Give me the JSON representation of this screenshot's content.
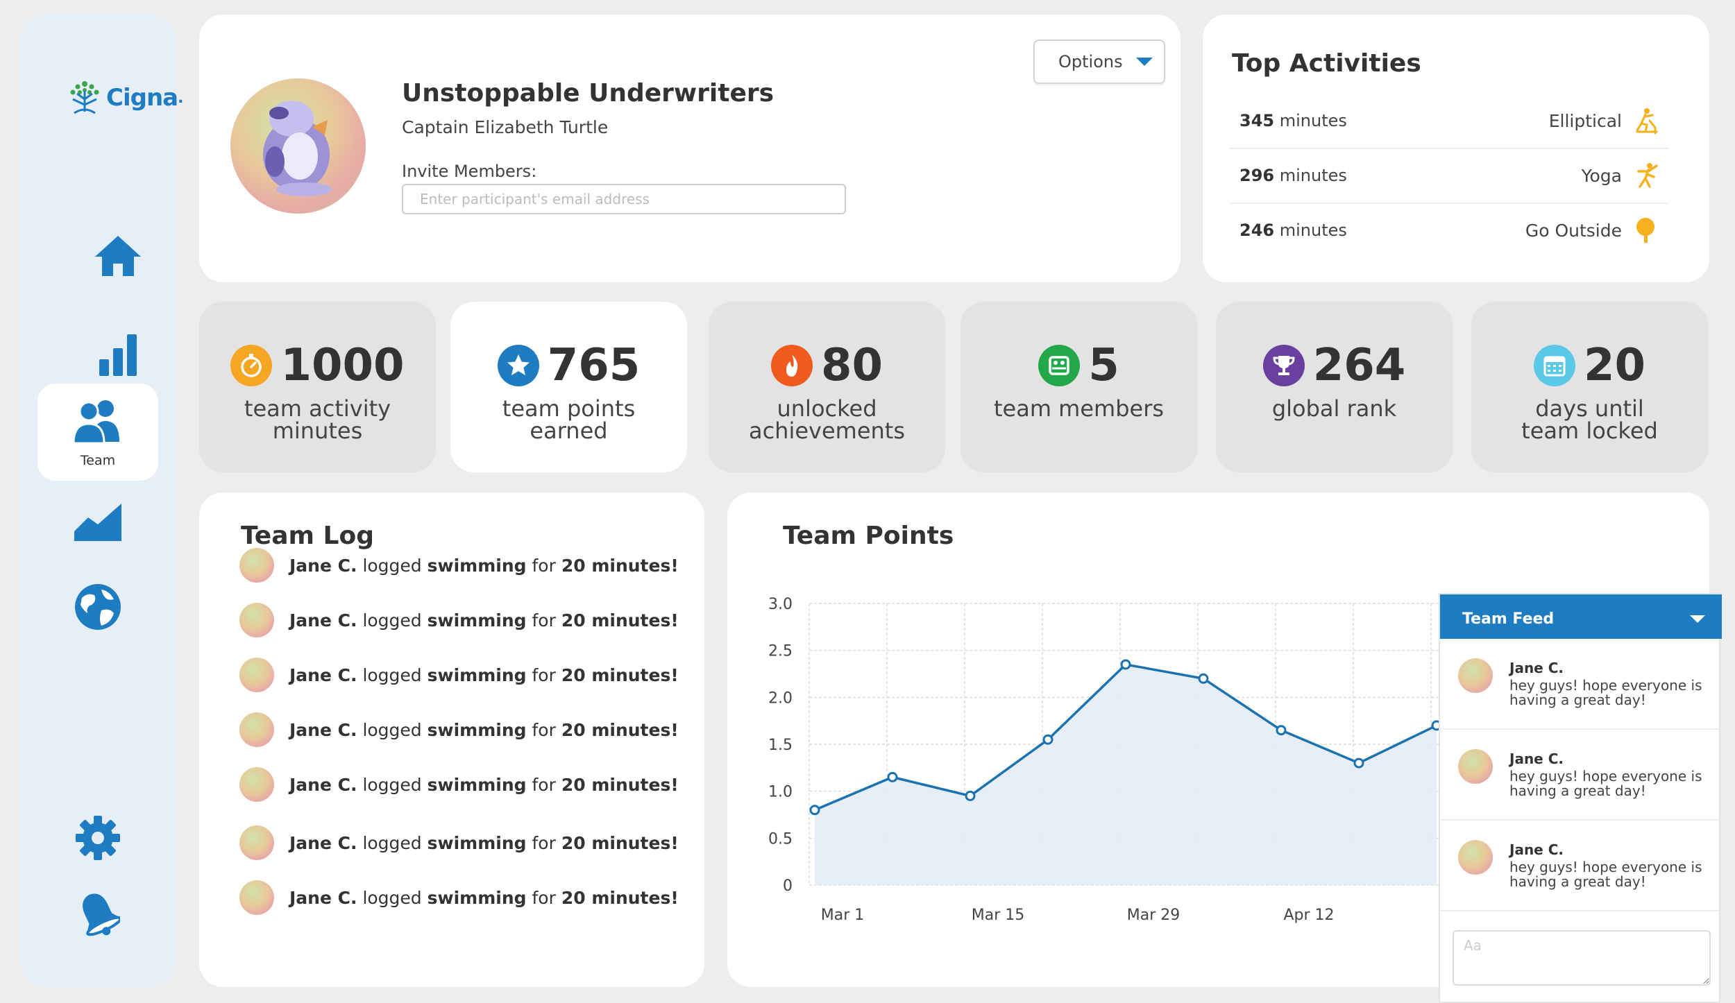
{
  "brand": {
    "name": "Cigna",
    "mark": "."
  },
  "sidebar": {
    "items": [
      {
        "id": "home",
        "icon": "home-icon",
        "label": ""
      },
      {
        "id": "stats",
        "icon": "bar-chart-icon",
        "label": ""
      },
      {
        "id": "team",
        "icon": "team-icon",
        "label": "Team",
        "active": true
      },
      {
        "id": "progress",
        "icon": "area-chart-icon",
        "label": ""
      },
      {
        "id": "global",
        "icon": "globe-icon",
        "label": ""
      },
      {
        "id": "settings",
        "icon": "gear-icon",
        "label": ""
      },
      {
        "id": "notifications",
        "icon": "bell-icon",
        "label": ""
      }
    ]
  },
  "profile": {
    "team_name": "Unstoppable Underwriters",
    "captain": "Captain Elizabeth Turtle",
    "invite_label": "Invite Members:",
    "invite_placeholder": "Enter participant's email address",
    "options_label": "Options"
  },
  "top_activities": {
    "title": "Top Activities",
    "unit": "minutes",
    "items": [
      {
        "minutes": "345",
        "name": "Elliptical",
        "icon": "elliptical-icon"
      },
      {
        "minutes": "296",
        "name": "Yoga",
        "icon": "yoga-icon"
      },
      {
        "minutes": "246",
        "name": "Go Outside",
        "icon": "tree-icon"
      }
    ]
  },
  "stats": [
    {
      "value": "1000",
      "label_line1": "team activity",
      "label_line2": "minutes",
      "icon": "stopwatch-icon",
      "color": "#f5a623"
    },
    {
      "value": "765",
      "label_line1": "team points",
      "label_line2": "earned",
      "icon": "star-icon",
      "color": "#1e7cc3"
    },
    {
      "value": "80",
      "label_line1": "unlocked",
      "label_line2": "achievements",
      "icon": "flame-icon",
      "color": "#f05a1e"
    },
    {
      "value": "5",
      "label_line1": "team members",
      "label_line2": "",
      "icon": "people-icon",
      "color": "#22a84a"
    },
    {
      "value": "264",
      "label_line1": "global rank",
      "label_line2": "",
      "icon": "trophy-icon",
      "color": "#6b3fa0"
    },
    {
      "value": "20",
      "label_line1": "days until",
      "label_line2": "team locked",
      "icon": "calendar-icon",
      "color": "#5bc8e8"
    }
  ],
  "team_log": {
    "title": "Team Log",
    "entries": [
      {
        "name": "Jane C.",
        "verb": "logged",
        "activity": "swimming",
        "prep": "for",
        "duration": "20 minutes!"
      },
      {
        "name": "Jane C.",
        "verb": "logged",
        "activity": "swimming",
        "prep": "for",
        "duration": "20 minutes!"
      },
      {
        "name": "Jane C.",
        "verb": "logged",
        "activity": "swimming",
        "prep": "for",
        "duration": "20 minutes!"
      },
      {
        "name": "Jane C.",
        "verb": "logged",
        "activity": "swimming",
        "prep": "for",
        "duration": "20 minutes!"
      },
      {
        "name": "Jane C.",
        "verb": "logged",
        "activity": "swimming",
        "prep": "for",
        "duration": "20 minutes!"
      },
      {
        "name": "Jane C.",
        "verb": "logged",
        "activity": "swimming",
        "prep": "for",
        "duration": "20 minutes!"
      },
      {
        "name": "Jane C.",
        "verb": "logged",
        "activity": "swimming",
        "prep": "for",
        "duration": "20 minutes!"
      }
    ]
  },
  "chart_data": {
    "type": "area",
    "title": "Team Points",
    "xlabel": "",
    "ylabel": "",
    "ylim": [
      0,
      3.0
    ],
    "yticks": [
      "0",
      "0.5",
      "1.0",
      "1.5",
      "2.0",
      "2.5",
      "3.0"
    ],
    "xtick_labels": [
      "Mar 1",
      "Mar 15",
      "Mar 29",
      "Apr 12"
    ],
    "grid": true,
    "series": [
      {
        "points": [
          0.8,
          1.15,
          0.95,
          1.55,
          2.35,
          2.2,
          1.65,
          1.3,
          1.7
        ]
      }
    ],
    "colors": {
      "line": "#1a73b0",
      "fill": "#e6ecf7"
    }
  },
  "team_feed": {
    "title": "Team Feed",
    "input_placeholder": "Aa",
    "messages": [
      {
        "name": "Jane C.",
        "text": "hey guys! hope everyone is having a great day!"
      },
      {
        "name": "Jane C.",
        "text": "hey guys! hope everyone is having a great day!"
      },
      {
        "name": "Jane C.",
        "text": "hey guys! hope everyone is having a great day!"
      }
    ]
  },
  "colors": {
    "accent": "#1e7cc3",
    "activity_orange": "#f5b01e"
  }
}
